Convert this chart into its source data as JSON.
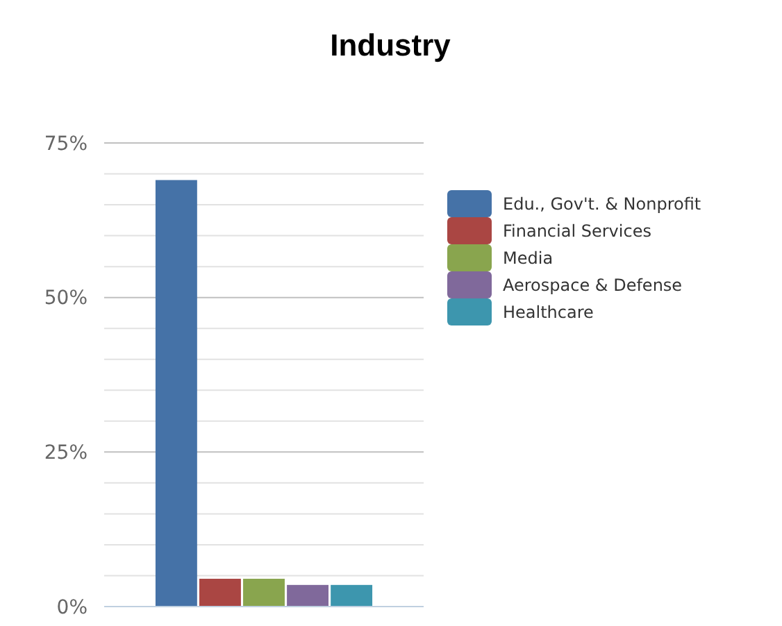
{
  "chart_data": {
    "type": "bar",
    "title": "Industry",
    "categories": [
      null
    ],
    "series": [
      {
        "name": "Edu., Gov't. & Nonprofit",
        "color": "#4572a7",
        "values": [
          69
        ]
      },
      {
        "name": "Financial Services",
        "color": "#aa4643",
        "values": [
          4.5
        ]
      },
      {
        "name": "Media",
        "color": "#89a54e",
        "values": [
          4.5
        ]
      },
      {
        "name": "Aerospace & Defense",
        "color": "#80699b",
        "values": [
          3.5
        ]
      },
      {
        "name": "Healthcare",
        "color": "#3d96ae",
        "values": [
          3.5
        ]
      }
    ],
    "ylim": [
      0,
      75
    ],
    "yticks": [
      {
        "value": 0,
        "label": "0%"
      },
      {
        "value": 5,
        "label": null
      },
      {
        "value": 10,
        "label": null
      },
      {
        "value": 15,
        "label": null
      },
      {
        "value": 20,
        "label": null
      },
      {
        "value": 25,
        "label": "25%"
      },
      {
        "value": 30,
        "label": null
      },
      {
        "value": 35,
        "label": null
      },
      {
        "value": 40,
        "label": null
      },
      {
        "value": 45,
        "label": null
      },
      {
        "value": 50,
        "label": "50%"
      },
      {
        "value": 55,
        "label": null
      },
      {
        "value": 60,
        "label": null
      },
      {
        "value": 65,
        "label": null
      },
      {
        "value": 70,
        "label": null
      },
      {
        "value": 75,
        "label": "75%"
      }
    ],
    "grid": true,
    "legend": "right"
  }
}
